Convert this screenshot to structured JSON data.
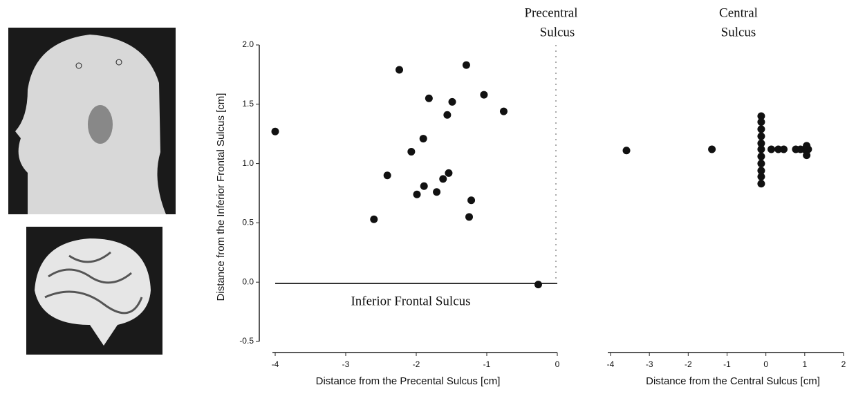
{
  "chart_data": [
    {
      "type": "scatter",
      "color": "#111111",
      "xlabel": "Distance from the Precental Sulcus [cm]",
      "ylabel": "Distance from the Inferior Frontal Sulcus [cm]",
      "annotations": [
        "Precentral",
        "Sulcus",
        "Inferior Frontal Sulcus"
      ],
      "x": [
        -4.0,
        -2.24,
        -1.29,
        -1.82,
        -1.49,
        -1.04,
        -0.76,
        -1.56,
        -1.9,
        -2.07,
        -2.41,
        -1.54,
        -1.62,
        -1.89,
        -1.99,
        -1.71,
        -1.22,
        -2.6,
        -1.25,
        -0.27
      ],
      "values": [
        1.27,
        1.79,
        1.83,
        1.55,
        1.52,
        1.58,
        1.44,
        1.41,
        1.21,
        1.1,
        0.9,
        0.92,
        0.87,
        0.81,
        0.74,
        0.76,
        0.69,
        0.53,
        0.55,
        -0.02
      ],
      "xlim": [
        -4,
        0
      ],
      "ylim": [
        -0.5,
        2.0
      ],
      "xticks": [
        -4,
        -3,
        -2,
        -1,
        0
      ],
      "yticks": [
        -0.5,
        {
          "value": 0,
          "label": "0.0"
        },
        0.5,
        {
          "value": 1,
          "label": "1.0"
        },
        1.5,
        {
          "value": 2,
          "label": "2.0"
        }
      ]
    },
    {
      "type": "scatter",
      "color": "#111111",
      "xlabel": "Distance from the Central Sulcus [cm]",
      "annotations": [
        "Central",
        "Sulcus"
      ],
      "x": [
        -3.59,
        -1.39,
        -0.12,
        -0.12,
        -0.12,
        -0.12,
        -0.12,
        -0.12,
        -0.12,
        -0.12,
        -0.12,
        -0.12,
        -0.12,
        0.14,
        0.32,
        0.46,
        0.77,
        0.89,
        1.0,
        1.09,
        1.05,
        1.05
      ],
      "values": [
        1.11,
        1.12,
        1.4,
        1.35,
        1.29,
        1.23,
        1.17,
        1.12,
        1.06,
        1.0,
        0.94,
        0.89,
        0.83,
        1.12,
        1.12,
        1.12,
        1.12,
        1.12,
        1.12,
        1.12,
        1.15,
        1.07
      ],
      "xlim": [
        -4,
        2
      ],
      "ylim": [
        -0.5,
        2.0
      ],
      "xticks": [
        -4,
        -3,
        -2,
        -1,
        0,
        1,
        2
      ]
    }
  ]
}
